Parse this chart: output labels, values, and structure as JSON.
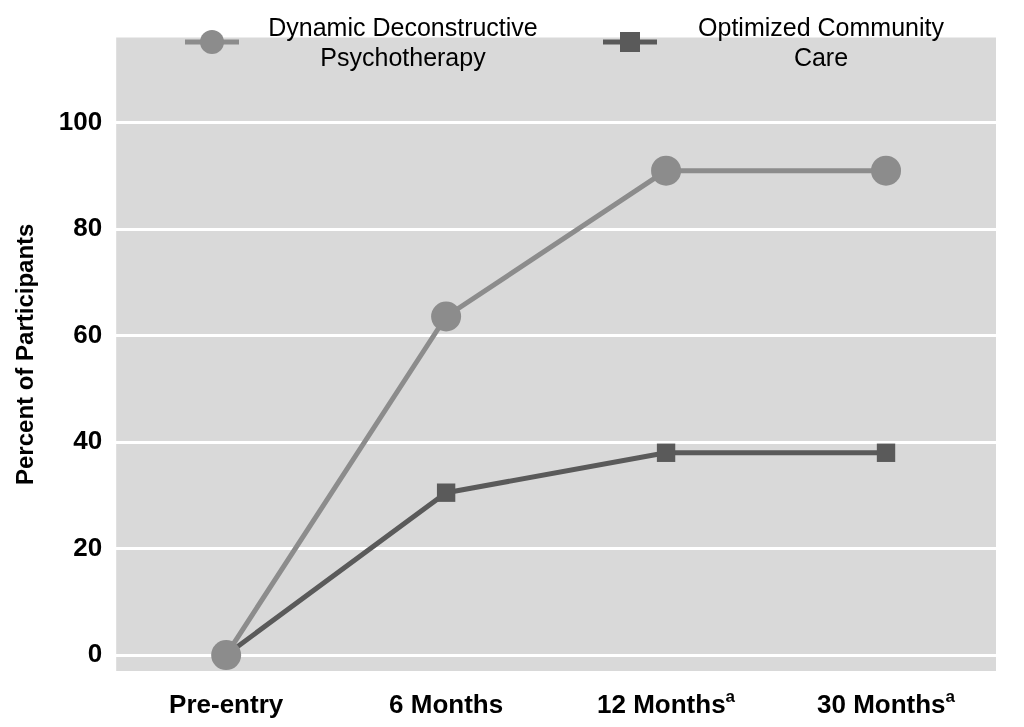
{
  "chart_data": {
    "type": "line",
    "ylabel": "Percent of Participants",
    "categories": [
      "Pre-entry",
      "6 Months",
      "12 Months$^{a}$",
      "30 Months$^{a}$"
    ],
    "series": [
      {
        "name": "Dynamic Deconstructive Psychotherapy",
        "color": "#8c8c8c",
        "values": [
          0,
          63.6,
          91,
          91
        ],
        "marker": "circle"
      },
      {
        "name": "Optimized Community Care",
        "color": "#5a5a5a",
        "values": [
          0,
          30.5,
          38,
          38
        ],
        "marker": "square"
      }
    ],
    "ylim": [
      -3,
      116
    ],
    "yticks": [
      0,
      20,
      40,
      60,
      80,
      100
    ],
    "grid": "y",
    "legend": "top",
    "line_style": "solid"
  }
}
